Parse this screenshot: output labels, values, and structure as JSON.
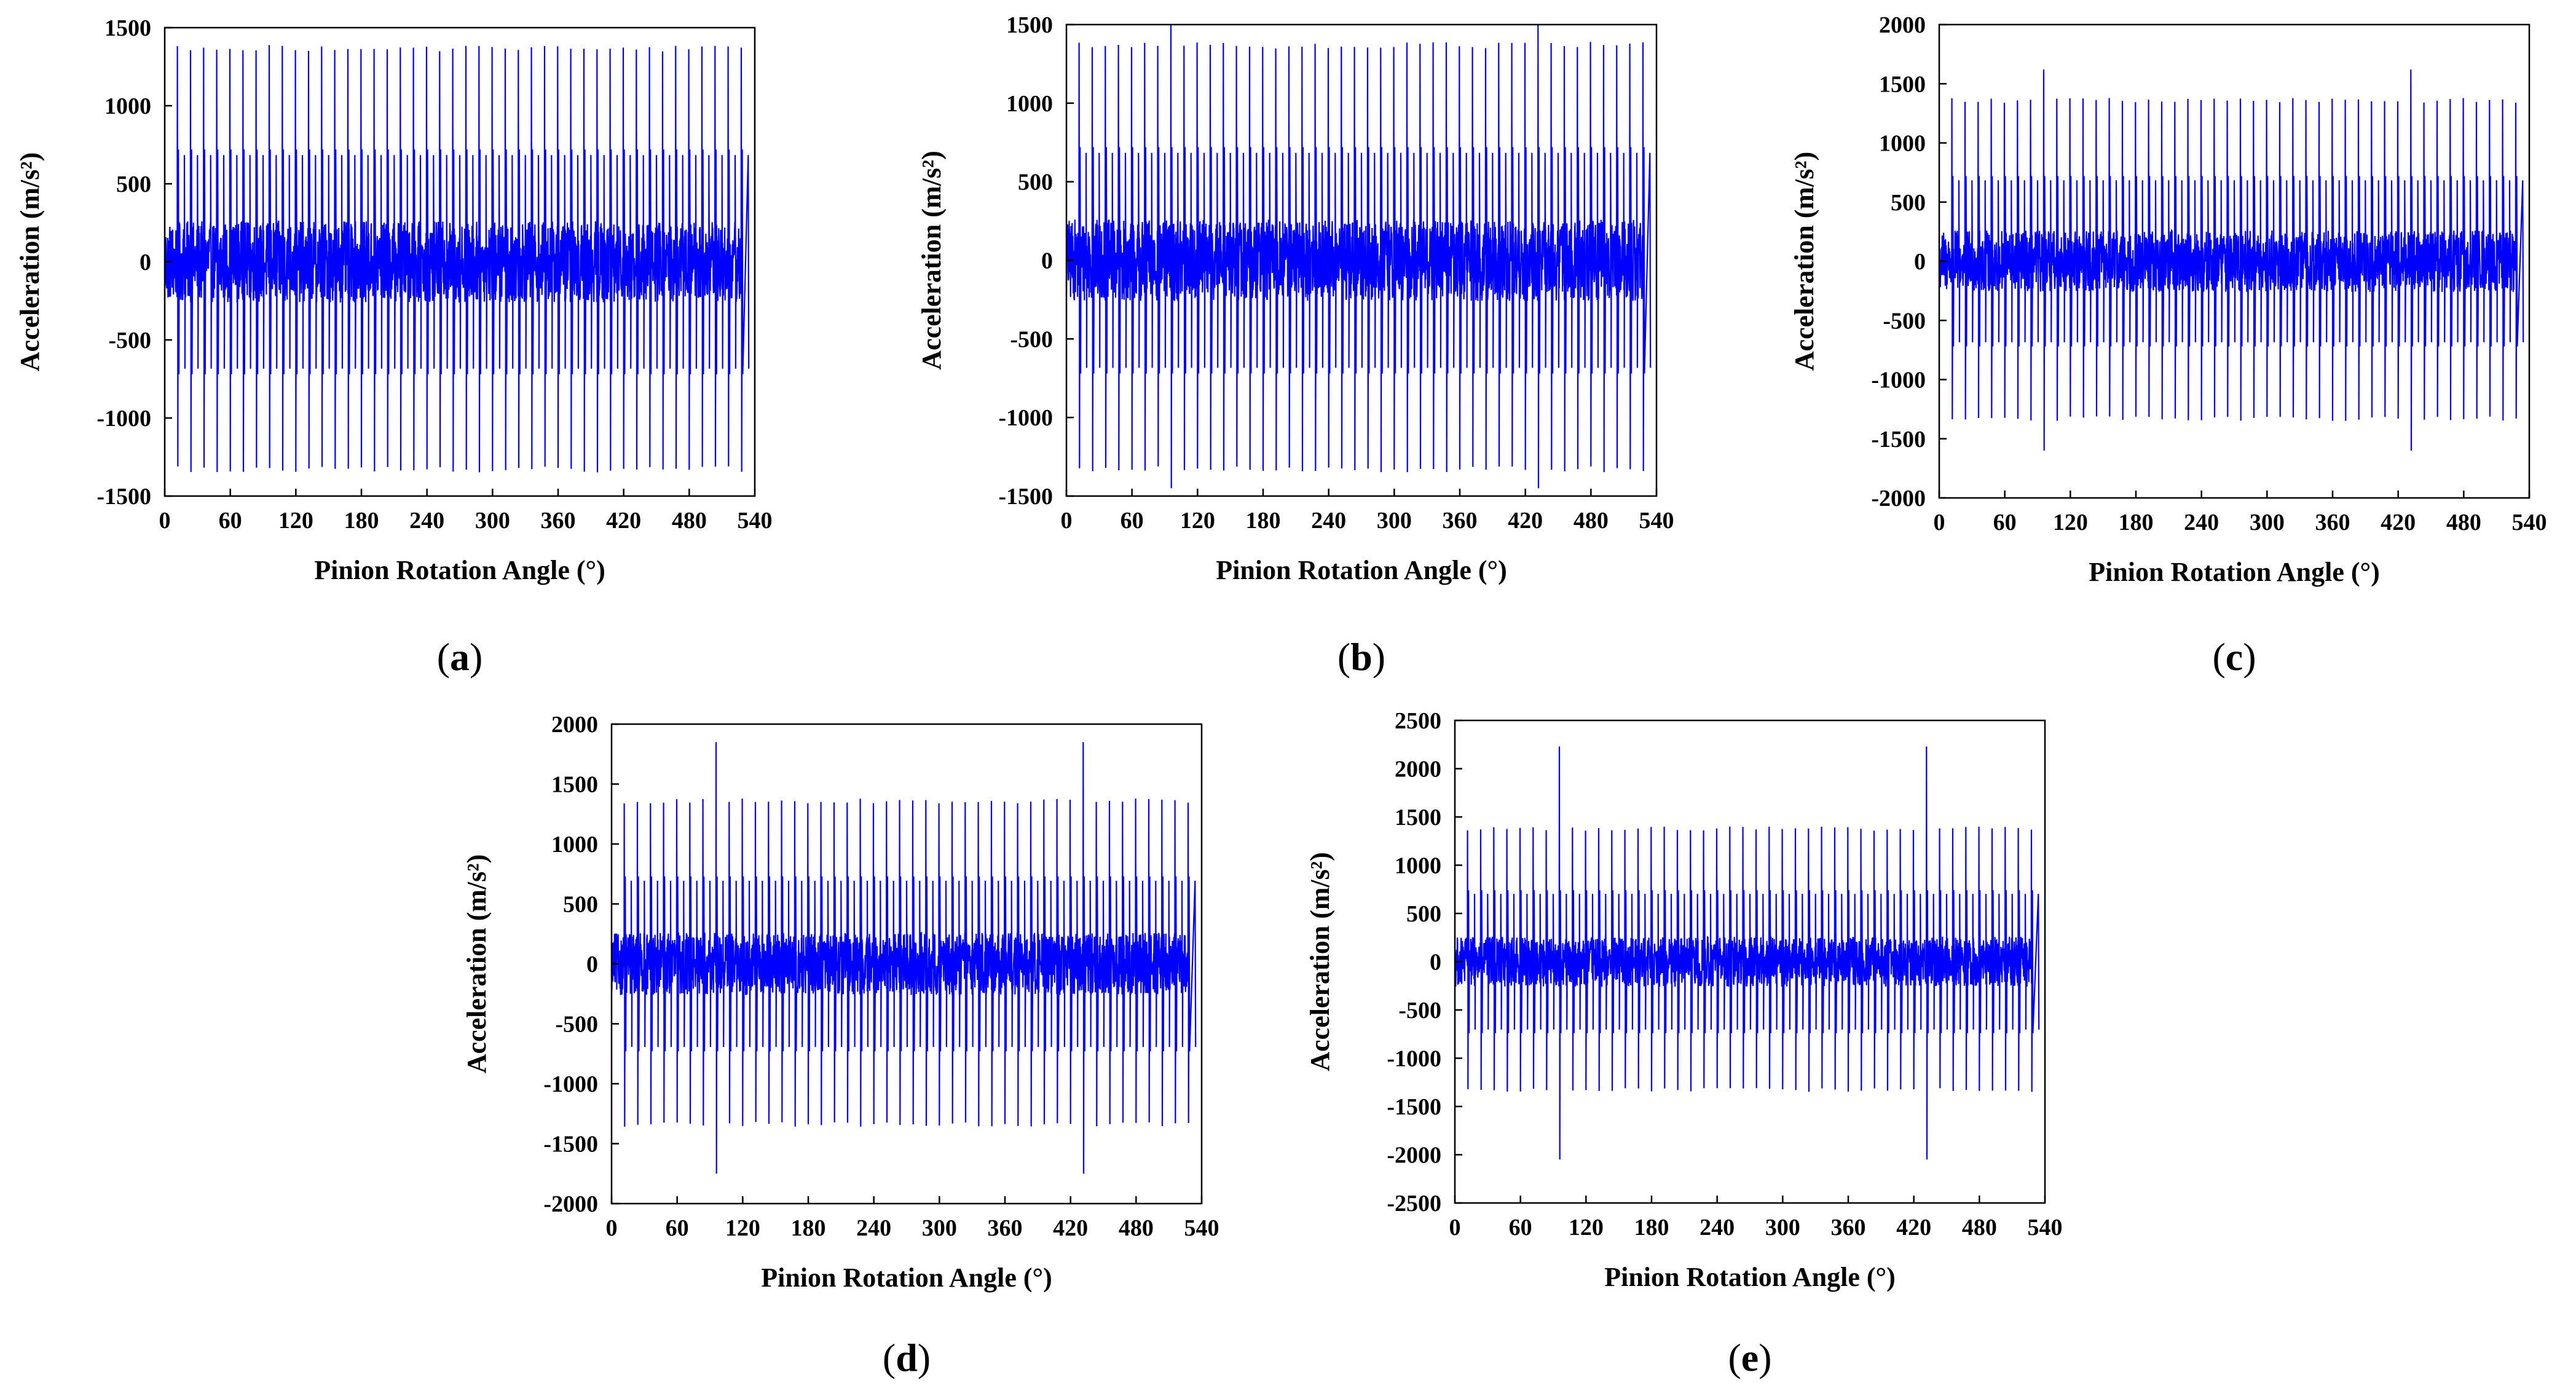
{
  "figure": {
    "colors": {
      "signal": "#0000ff",
      "axes": "#000000",
      "background": "#ffffff"
    }
  },
  "chart_data": [
    {
      "id": "a",
      "type": "line",
      "panel_label": "a",
      "xlabel": "Pinion Rotation Angle (°)",
      "ylabel": "Acceleration (m/s²)",
      "xlim": [
        0,
        540
      ],
      "ylim": [
        -1500,
        1500
      ],
      "xticks": [
        0,
        60,
        120,
        180,
        240,
        300,
        360,
        420,
        480,
        540
      ],
      "yticks": [
        -1500,
        -1000,
        -500,
        0,
        500,
        1000,
        1500
      ],
      "series": [
        {
          "name": "acceleration",
          "x_range": [
            0,
            528
          ],
          "tooth_period_deg": 12,
          "first_impact_deg": 12,
          "peak_positive": 1390,
          "peak_negative": -1350,
          "secondary_amplitude": 720,
          "noise_amplitude": 260,
          "fault_impacts": []
        }
      ]
    },
    {
      "id": "b",
      "type": "line",
      "panel_label": "b",
      "xlabel": "Pinion Rotation Angle (°)",
      "ylabel": "Acceleration (m/s²)",
      "xlim": [
        0,
        540
      ],
      "ylim": [
        -1500,
        1500
      ],
      "xticks": [
        0,
        60,
        120,
        180,
        240,
        300,
        360,
        420,
        480,
        540
      ],
      "yticks": [
        -1500,
        -1000,
        -500,
        0,
        500,
        1000,
        1500
      ],
      "series": [
        {
          "name": "acceleration",
          "x_range": [
            0,
            528
          ],
          "tooth_period_deg": 12,
          "first_impact_deg": 12,
          "peak_positive": 1390,
          "peak_negative": -1350,
          "secondary_amplitude": 720,
          "noise_amplitude": 260,
          "fault_impacts": [
            {
              "angle": 96,
              "max": 1500,
              "min": -1450
            },
            {
              "angle": 432,
              "max": 1500,
              "min": -1450
            }
          ]
        }
      ]
    },
    {
      "id": "c",
      "type": "line",
      "panel_label": "c",
      "xlabel": "Pinion Rotation Angle (°)",
      "ylabel": "Acceleration (m/s²)",
      "xlim": [
        0,
        540
      ],
      "ylim": [
        -2000,
        2000
      ],
      "xticks": [
        0,
        60,
        120,
        180,
        240,
        300,
        360,
        420,
        480,
        540
      ],
      "yticks": [
        -2000,
        -1500,
        -1000,
        -500,
        0,
        500,
        1000,
        1500,
        2000
      ],
      "series": [
        {
          "name": "acceleration",
          "x_range": [
            0,
            528
          ],
          "tooth_period_deg": 12,
          "first_impact_deg": 12,
          "peak_positive": 1380,
          "peak_negative": -1350,
          "secondary_amplitude": 720,
          "noise_amplitude": 260,
          "fault_impacts": [
            {
              "angle": 96,
              "max": 1620,
              "min": -1600
            },
            {
              "angle": 432,
              "max": 1620,
              "min": -1600
            }
          ]
        }
      ]
    },
    {
      "id": "d",
      "type": "line",
      "panel_label": "d",
      "xlabel": "Pinion Rotation Angle (°)",
      "ylabel": "Acceleration (m/s²)",
      "xlim": [
        0,
        540
      ],
      "ylim": [
        -2000,
        2000
      ],
      "xticks": [
        0,
        60,
        120,
        180,
        240,
        300,
        360,
        420,
        480,
        540
      ],
      "yticks": [
        -2000,
        -1500,
        -1000,
        -500,
        0,
        500,
        1000,
        1500,
        2000
      ],
      "series": [
        {
          "name": "acceleration",
          "x_range": [
            0,
            528
          ],
          "tooth_period_deg": 12,
          "first_impact_deg": 12,
          "peak_positive": 1380,
          "peak_negative": -1360,
          "secondary_amplitude": 730,
          "noise_amplitude": 260,
          "fault_impacts": [
            {
              "angle": 96,
              "max": 1850,
              "min": -1750
            },
            {
              "angle": 432,
              "max": 1850,
              "min": -1750
            }
          ]
        }
      ]
    },
    {
      "id": "e",
      "type": "line",
      "panel_label": "e",
      "xlabel": "Pinion Rotation Angle (°)",
      "ylabel": "Acceleration (m/s²)",
      "xlim": [
        0,
        540
      ],
      "ylim": [
        -2500,
        2500
      ],
      "xticks": [
        0,
        60,
        120,
        180,
        240,
        300,
        360,
        420,
        480,
        540
      ],
      "yticks": [
        -2500,
        -2000,
        -1500,
        -1000,
        -500,
        0,
        500,
        1000,
        1500,
        2000,
        2500
      ],
      "series": [
        {
          "name": "acceleration",
          "x_range": [
            0,
            528
          ],
          "tooth_period_deg": 12,
          "first_impact_deg": 12,
          "peak_positive": 1400,
          "peak_negative": -1350,
          "secondary_amplitude": 740,
          "noise_amplitude": 260,
          "fault_impacts": [
            {
              "angle": 96,
              "max": 2230,
              "min": -2050
            },
            {
              "angle": 432,
              "max": 2230,
              "min": -2050
            }
          ]
        }
      ]
    }
  ]
}
